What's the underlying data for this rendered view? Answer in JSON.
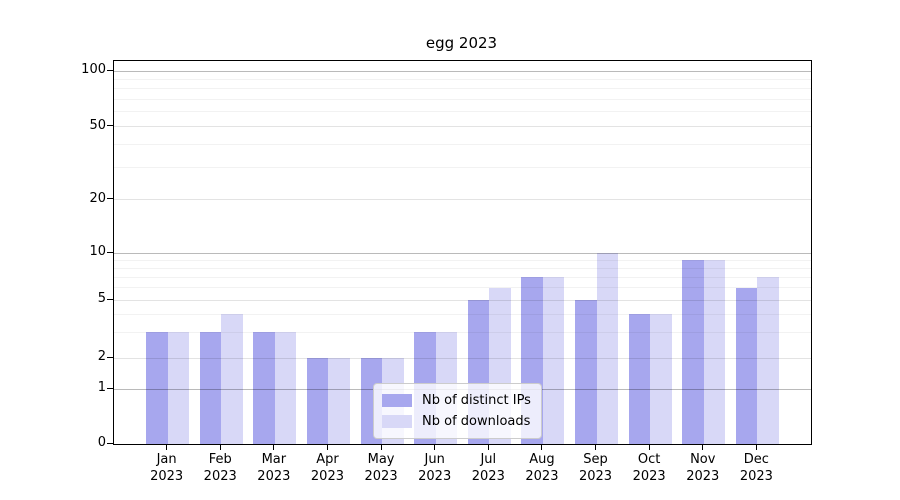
{
  "title": "egg 2023",
  "chart_data": {
    "type": "bar",
    "title": "egg 2023",
    "categories": [
      "Jan 2023",
      "Feb 2023",
      "Mar 2023",
      "Apr 2023",
      "May 2023",
      "Jun 2023",
      "Jul 2023",
      "Aug 2023",
      "Sep 2023",
      "Oct 2023",
      "Nov 2023",
      "Dec 2023"
    ],
    "series": [
      {
        "name": "Nb of distinct IPs",
        "key": "distinct-ips",
        "color": "#a7a7ee",
        "values": [
          3,
          3,
          3,
          2,
          2,
          3,
          5,
          7,
          5,
          4,
          9,
          6
        ]
      },
      {
        "name": "Nb of downloads",
        "key": "downloads",
        "color": "#d8d8f7",
        "values": [
          3,
          4,
          3,
          2,
          2,
          3,
          6,
          7,
          10,
          4,
          9,
          7
        ]
      }
    ],
    "xlabel": "",
    "ylabel": "",
    "y_axis": {
      "scale": "log-like",
      "ticks": [
        0,
        1,
        2,
        5,
        10,
        20,
        50,
        100
      ],
      "ylim": [
        0,
        100
      ],
      "grid": true
    },
    "legend": {
      "position": "lower center",
      "entries": [
        "Nb of distinct IPs",
        "Nb of downloads"
      ]
    }
  }
}
